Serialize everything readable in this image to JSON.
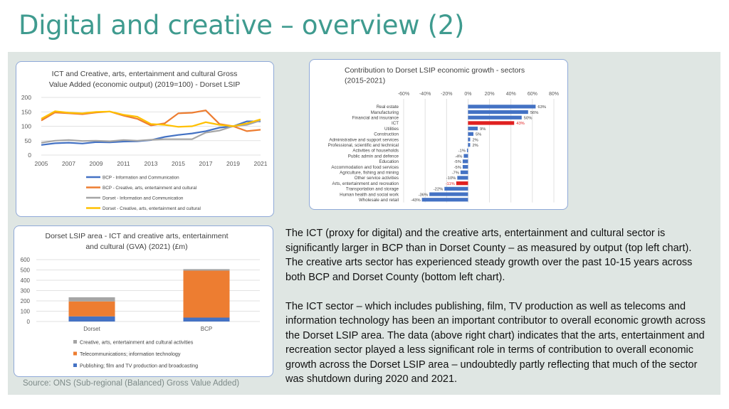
{
  "title": "Digital and creative – overview (2)",
  "source": "Source: ONS (Sub-regional (Balanced) Gross Value Added)",
  "commentary": [
    "The ICT (proxy for digital) and the creative arts, entertainment and cultural sector is significantly larger in BCP than in Dorset County – as measured by output (top left chart). The creative arts sector has experienced steady growth over the past 10-15 years across both BCP and Dorset County (bottom left chart).",
    "The ICT sector – which includes publishing, film, TV production as well as telecoms and information technology has been an important contributor to overall economic growth across the Dorset LSIP area. The data (above right chart) indicates that the arts, entertainment and recreation sector played a less significant role in terms of contribution to overall economic growth across the Dorset LSIP area – undoubtedly partly reflecting that much of the sector was shutdown during 2020 and 2021."
  ],
  "chart_data": [
    {
      "type": "line",
      "title": "ICT and Creative, arts, entertainment and cultural Gross Value Added (economic output) (2019=100) - Dorset LSIP",
      "title_lines": [
        "ICT and Creative, arts, entertainment and cultural Gross",
        "Value Added (economic output) (2019=100) - Dorset LSIP"
      ],
      "x": [
        2005,
        2006,
        2007,
        2008,
        2009,
        2010,
        2011,
        2012,
        2013,
        2014,
        2015,
        2016,
        2017,
        2018,
        2019,
        2020,
        2021
      ],
      "xticks": [
        2005,
        2007,
        2009,
        2011,
        2013,
        2015,
        2017,
        2019,
        2021
      ],
      "ylim": [
        0,
        200
      ],
      "yticks": [
        0,
        50,
        100,
        150,
        200
      ],
      "grid": true,
      "legend_position": "bottom",
      "series": [
        {
          "name": "BCP - Information and Communication",
          "color": "#4472c4",
          "values": [
            35,
            41,
            43,
            40,
            45,
            44,
            47,
            48,
            52,
            63,
            70,
            75,
            83,
            95,
            100,
            117,
            117
          ]
        },
        {
          "name": "BCP - Creative, arts, entertainment and cultural",
          "color": "#ed7d31",
          "values": [
            120,
            148,
            145,
            142,
            148,
            151,
            137,
            126,
            103,
            110,
            145,
            147,
            155,
            108,
            100,
            83,
            88
          ]
        },
        {
          "name": "Dorset - Information and Communication",
          "color": "#a5a5a5",
          "values": [
            43,
            50,
            52,
            49,
            50,
            48,
            52,
            50,
            53,
            55,
            55,
            55,
            78,
            85,
            100,
            105,
            120
          ]
        },
        {
          "name": "Dorset - Creative, arts, entertainment and cultural",
          "color": "#ffc000",
          "values": [
            126,
            152,
            147,
            145,
            150,
            151,
            140,
            133,
            108,
            105,
            98,
            100,
            114,
            105,
            100,
            110,
            124
          ]
        }
      ]
    },
    {
      "type": "bar",
      "orientation": "horizontal",
      "title": "Contribution to Dorset LSIP economic growth - sectors (2015-2021)",
      "title_lines": [
        "Contribution to Dorset LSIP economic growth - sectors",
        "(2015-2021)"
      ],
      "xlim": [
        -60,
        80
      ],
      "xticks": [
        "-60%",
        "-40%",
        "-20%",
        "0%",
        "20%",
        "40%",
        "60%",
        "80%"
      ],
      "grid": true,
      "categories": [
        "Real estate",
        "Manufacturing",
        "Financial and insurance",
        "ICT",
        "Utilities",
        "Construction",
        "Administrative and support services",
        "Professional, scientific and technical",
        "Activities of households",
        "Public admin and defence",
        "Education",
        "Accommodation and food services",
        "Agriculture, fishing and mining",
        "Other service activities",
        "Arts, entertainment and recreation",
        "Transportation and storage",
        "Human health and social work",
        "Wholesale and retail"
      ],
      "values": [
        63,
        56,
        50,
        43,
        9,
        5,
        2,
        2,
        -1,
        -4,
        -5,
        -5,
        -7,
        -10,
        -11,
        -22,
        -36,
        -43
      ],
      "labels": [
        "63%",
        "56%",
        "50%",
        "43%",
        "9%",
        "5%",
        "2%",
        "2%",
        "-1%",
        "-4%",
        "-5%",
        "-5%",
        "-7%",
        "-10%",
        "-11%",
        "-22%",
        "-36%",
        "-43%"
      ],
      "colors": {
        "default": "#4472c4",
        "highlight": "#e02020"
      },
      "highlighted": [
        "ICT",
        "Arts, entertainment and recreation"
      ]
    },
    {
      "type": "bar",
      "stacked": true,
      "title": "Dorset LSIP area - ICT and creative arts, entertainment and cultural  (GVA) (2021) (£m)",
      "title_lines": [
        "Dorset LSIP area - ICT and creative arts, entertainment",
        "and cultural  (GVA) (2021) (£m)"
      ],
      "categories": [
        "Dorset",
        "BCP"
      ],
      "ylim": [
        0,
        600
      ],
      "yticks": [
        0,
        100,
        200,
        300,
        400,
        500,
        600
      ],
      "grid": true,
      "legend_position": "bottom",
      "series": [
        {
          "name": "Publishing; film and TV production and broadcasting",
          "color": "#4472c4",
          "values": [
            50,
            38
          ]
        },
        {
          "name": "Telecommunications; information technology",
          "color": "#ed7d31",
          "values": [
            145,
            455
          ]
        },
        {
          "name": "Creative, arts, entertainment and cultural activities",
          "color": "#a5a5a5",
          "values": [
            40,
            15
          ]
        }
      ],
      "legend_order": [
        "Creative, arts, entertainment and cultural activities",
        "Telecommunications; information technology",
        "Publishing; film and TV production and broadcasting"
      ]
    }
  ]
}
